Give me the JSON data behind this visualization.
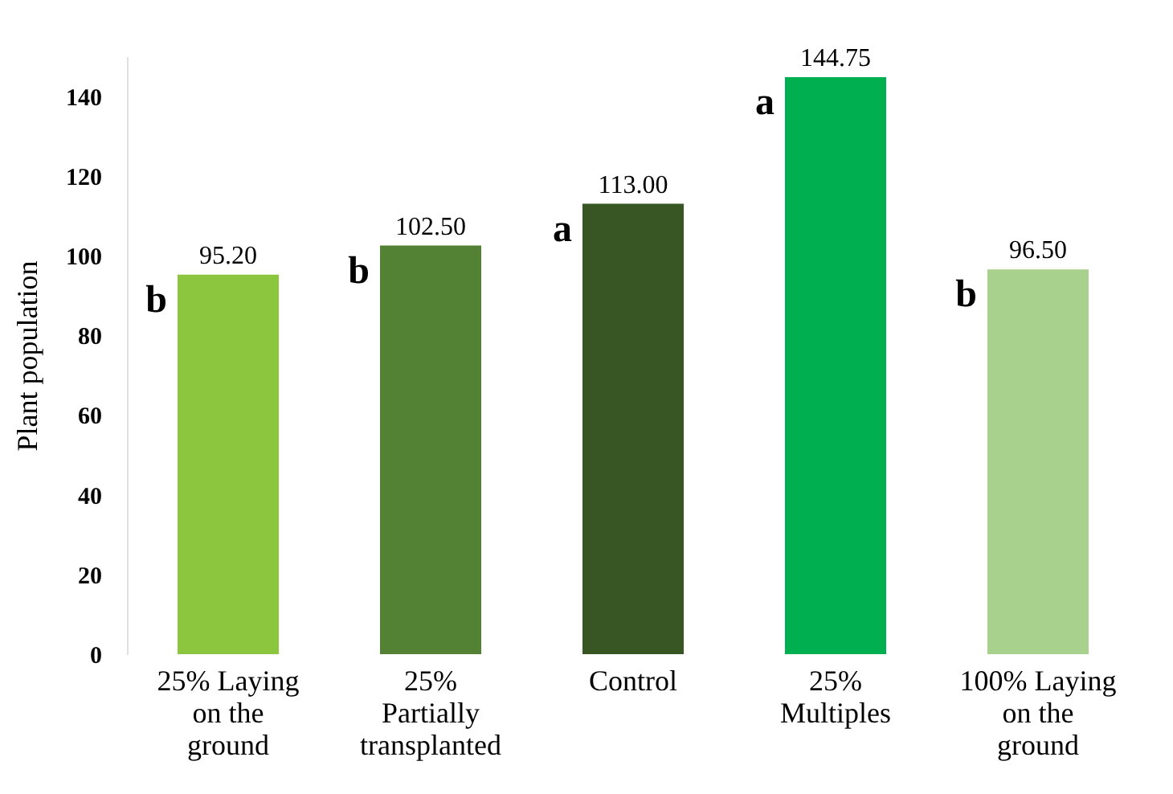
{
  "chart_data": {
    "type": "bar",
    "ylabel": "Plant population",
    "categories": [
      "25% Laying on the ground",
      "25% Partially transplanted",
      "Control",
      "25% Multiples",
      "100% Laying on the ground"
    ],
    "values": [
      95.2,
      102.5,
      113.0,
      144.75,
      96.5
    ],
    "colors": [
      "#8cc63f",
      "#548235",
      "#375623",
      "#00b050",
      "#a9d18e"
    ],
    "value_labels": [
      "95.20",
      "102.50",
      "113.00",
      "144.75",
      "96.50"
    ],
    "annotations": [
      {
        "text": "b",
        "x": "25% Laying on the ground",
        "y": 95.2
      },
      {
        "text": "b",
        "x": "25% Partially transplanted",
        "y": 102.5
      },
      {
        "text": "a",
        "x": "Control",
        "y": 113.0
      },
      {
        "text": "a",
        "x": "25% Multiples",
        "y": 144.75
      },
      {
        "text": "b",
        "x": "100% Laying on the ground",
        "y": 96.5
      }
    ],
    "ylim": [
      0,
      150
    ],
    "yticks": [
      0,
      20,
      40,
      60,
      80,
      100,
      120,
      140
    ],
    "grid": false
  }
}
